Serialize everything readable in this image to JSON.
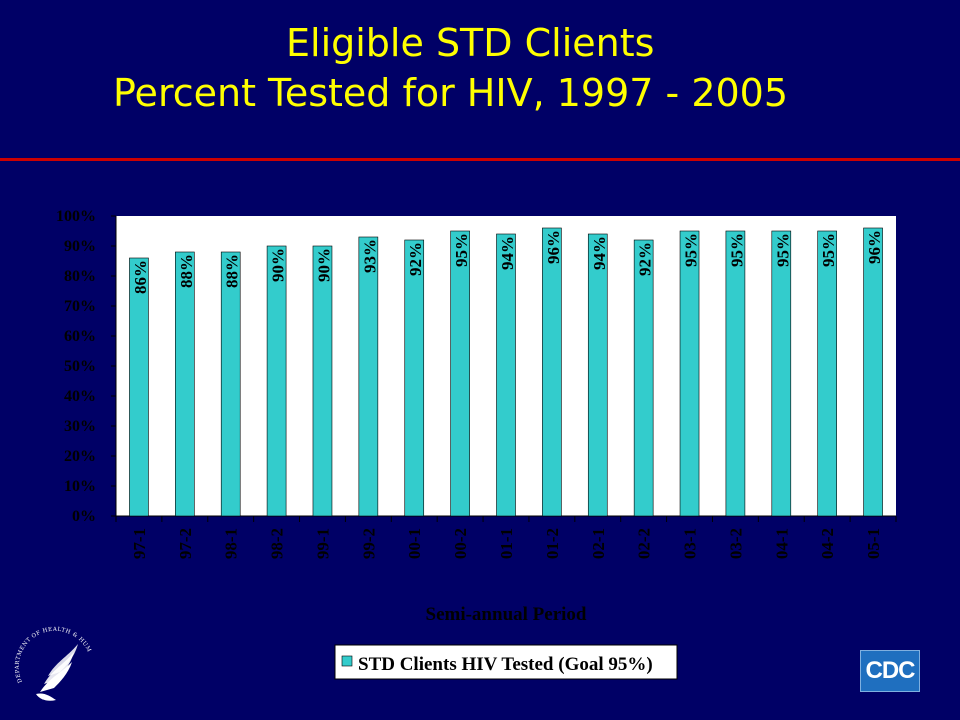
{
  "slide": {
    "title_line1": "Eligible STD Clients",
    "title_line2": "Percent Tested for HIV, 1997 - 2005"
  },
  "logos": {
    "cdc_text": "CDC",
    "hhs_seal_text": "DEPARTMENT OF HEALTH & HUMAN SERVICES · USA"
  },
  "colors": {
    "background": "#000066",
    "title": "#FFFF00",
    "rule": "#CC0000",
    "plot_area": "#FFFFFF",
    "bar": "#33CCCC"
  },
  "chart_data": {
    "type": "bar",
    "categories": [
      "97-1",
      "97-2",
      "98-1",
      "98-2",
      "99-1",
      "99-2",
      "00-1",
      "00-2",
      "01-1",
      "01-2",
      "02-1",
      "02-2",
      "03-1",
      "03-2",
      "04-1",
      "04-2",
      "05-1"
    ],
    "values": [
      86,
      88,
      88,
      90,
      90,
      93,
      92,
      95,
      94,
      96,
      94,
      92,
      95,
      95,
      95,
      95,
      96
    ],
    "data_labels": [
      "86%",
      "88%",
      "88%",
      "90%",
      "90%",
      "93%",
      "92%",
      "95%",
      "94%",
      "96%",
      "94%",
      "92%",
      "95%",
      "95%",
      "95%",
      "95%",
      "96%"
    ],
    "xlabel": "Semi-annual Period",
    "ylabel": "",
    "ylim": [
      0,
      100
    ],
    "yticks": [
      "0%",
      "10%",
      "20%",
      "30%",
      "40%",
      "50%",
      "60%",
      "70%",
      "80%",
      "90%",
      "100%"
    ],
    "grid": false,
    "legend": {
      "entries": [
        "STD Clients HIV Tested (Goal 95%)"
      ],
      "placement": "bottom"
    }
  }
}
